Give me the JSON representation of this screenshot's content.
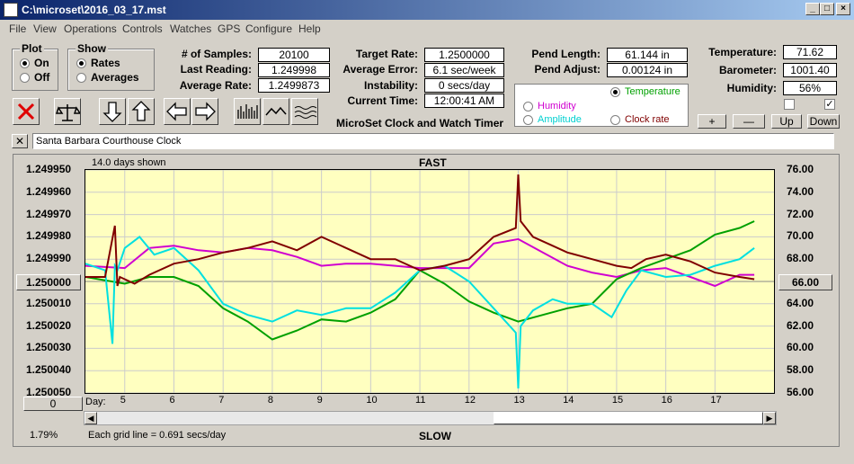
{
  "window": {
    "title": "C:\\microset\\2016_03_17.mst"
  },
  "menu": [
    "File",
    "View",
    "Operations",
    "Controls",
    "Watches",
    "GPS",
    "Configure",
    "Help"
  ],
  "plot_group": {
    "title": "Plot",
    "options": [
      "On",
      "Off"
    ],
    "selected": "On"
  },
  "show_group": {
    "title": "Show",
    "options": [
      "Rates",
      "Averages"
    ],
    "selected": "Rates"
  },
  "stats": {
    "samples_label": "# of Samples:",
    "samples": "20100",
    "last_label": "Last Reading:",
    "last": "1.249998",
    "avg_label": "Average Rate:",
    "avg": "1.2499873",
    "target_label": "Target Rate:",
    "target": "1.2500000",
    "err_label": "Average Error:",
    "err": "6.1 sec/week",
    "inst_label": "Instability:",
    "inst": "0 secs/day",
    "time_label": "Current Time:",
    "time": "12:00:41 AM",
    "pend_len_label": "Pend Length:",
    "pend_len": "61.144 in",
    "pend_adj_label": "Pend Adjust:",
    "pend_adj": "0.00124 in",
    "temp_label": "Temperature:",
    "temp": "71.62",
    "baro_label": "Barometer:",
    "baro": "1001.40",
    "hum_label": "Humidity:",
    "hum": "56%"
  },
  "app_caption": "MicroSet Clock and Watch Timer",
  "series_group": {
    "temperature": "Temperature",
    "humidity": "Humidity",
    "amplitude": "Amplitude",
    "clock_rate": "Clock rate",
    "selected": "Temperature",
    "colors": {
      "temperature": "#00a000",
      "humidity": "#d000d0",
      "amplitude": "#00e0e0",
      "clock_rate": "#800000"
    }
  },
  "small_buttons": {
    "plus": "+",
    "minus": "—",
    "up": "Up",
    "down": "Down"
  },
  "checkboxes": {
    "left": false,
    "right": true
  },
  "clock_name": "Santa Barbara Courthouse Clock",
  "close_button": "✕",
  "chart": {
    "days_shown": "14.0 days shown",
    "top_label": "FAST",
    "bottom_label": "SLOW",
    "center_left": "1.250000",
    "center_right": "66.00",
    "day_label": "Day:",
    "zero_button": "0",
    "percent": "1.79%",
    "grid_note": "Each grid line = 0.691 secs/day"
  },
  "chart_data": {
    "type": "line",
    "left_axis": {
      "ticks": [
        "1.249950",
        "1.249960",
        "1.249970",
        "1.249980",
        "1.249990",
        "1.250000",
        "1.250010",
        "1.250020",
        "1.250030",
        "1.250040",
        "1.250050"
      ],
      "ylim": [
        1.25005,
        1.24995
      ]
    },
    "right_axis": {
      "ticks": [
        "76.00",
        "74.00",
        "72.00",
        "70.00",
        "68.00",
        "66.00",
        "64.00",
        "62.00",
        "60.00",
        "58.00",
        "56.00"
      ],
      "ylim": [
        56,
        76
      ]
    },
    "x_ticks": [
      "5",
      "6",
      "7",
      "8",
      "9",
      "10",
      "11",
      "12",
      "13",
      "14",
      "15",
      "16",
      "17"
    ],
    "x_range": [
      4.2,
      18.2
    ],
    "series": [
      {
        "name": "Humidity",
        "color": "#d000d0",
        "x": [
          4.2,
          5,
          5.5,
          6,
          6.5,
          7,
          7.5,
          8,
          8.5,
          9,
          9.5,
          10,
          10.5,
          11,
          11.5,
          12,
          12.5,
          13,
          13.5,
          14,
          14.5,
          15,
          15.5,
          16,
          16.5,
          17,
          17.5,
          17.8
        ],
        "y": [
          1.249993,
          1.249994,
          1.249985,
          1.249984,
          1.249986,
          1.249987,
          1.249985,
          1.249986,
          1.249989,
          1.249993,
          1.249992,
          1.249992,
          1.249993,
          1.249994,
          1.249994,
          1.249994,
          1.249983,
          1.249981,
          1.249987,
          1.249993,
          1.249996,
          1.249998,
          1.249995,
          1.249994,
          1.249998,
          1.250002,
          1.249997,
          1.249997
        ]
      },
      {
        "name": "Temperature",
        "color": "#00a000",
        "x": [
          4.2,
          5,
          5.5,
          6,
          6.5,
          7,
          7.5,
          8,
          8.5,
          9,
          9.5,
          10,
          10.5,
          11,
          11.5,
          12,
          12.5,
          13,
          13.5,
          14,
          14.5,
          15,
          15.5,
          16,
          16.5,
          17,
          17.5,
          17.8
        ],
        "y": [
          1.249998,
          1.250001,
          1.249998,
          1.249998,
          1.250002,
          1.250012,
          1.250018,
          1.250026,
          1.250022,
          1.250017,
          1.250018,
          1.250014,
          1.250008,
          1.249995,
          1.250001,
          1.250009,
          1.250014,
          1.250018,
          1.250015,
          1.250012,
          1.25001,
          1.249999,
          1.249994,
          1.24999,
          1.249986,
          1.249979,
          1.249976,
          1.249973
        ]
      },
      {
        "name": "Amplitude",
        "color": "#00e0e0",
        "x": [
          4.2,
          4.6,
          4.75,
          4.8,
          4.85,
          5,
          5.3,
          5.6,
          6,
          6.5,
          7,
          7.5,
          8,
          8.5,
          9,
          9.5,
          10,
          10.5,
          11,
          11.5,
          12,
          12.5,
          12.95,
          13.0,
          13.05,
          13.3,
          13.7,
          14,
          14.5,
          14.9,
          15.2,
          15.5,
          16,
          16.5,
          17,
          17.5,
          17.8
        ],
        "y": [
          1.249992,
          1.249995,
          1.250028,
          1.249993,
          1.249995,
          1.249985,
          1.24998,
          1.249988,
          1.249985,
          1.249995,
          1.25001,
          1.250015,
          1.250018,
          1.250013,
          1.250015,
          1.250012,
          1.250012,
          1.250005,
          1.249995,
          1.249993,
          1.25,
          1.250012,
          1.250023,
          1.250048,
          1.25002,
          1.250013,
          1.250008,
          1.25001,
          1.25001,
          1.250016,
          1.250004,
          1.249995,
          1.249998,
          1.249997,
          1.249993,
          1.24999,
          1.249985
        ]
      },
      {
        "name": "Clock rate",
        "color": "#800000",
        "x": [
          4.2,
          4.6,
          4.8,
          4.85,
          4.9,
          5.2,
          5.5,
          6,
          6.5,
          7,
          7.5,
          8,
          8.5,
          9,
          9.5,
          10,
          10.5,
          11,
          11.5,
          12,
          12.5,
          12.95,
          13.0,
          13.05,
          13.3,
          13.7,
          14,
          14.5,
          15,
          15.3,
          15.6,
          16,
          16.5,
          17,
          17.5,
          17.8
        ],
        "y": [
          1.249998,
          1.249998,
          1.249975,
          1.250002,
          1.249998,
          1.250001,
          1.249997,
          1.249992,
          1.24999,
          1.249987,
          1.249985,
          1.249982,
          1.249986,
          1.24998,
          1.249985,
          1.24999,
          1.24999,
          1.249995,
          1.249993,
          1.24999,
          1.24998,
          1.249976,
          1.249952,
          1.249973,
          1.24998,
          1.249984,
          1.249987,
          1.24999,
          1.249993,
          1.249994,
          1.24999,
          1.249988,
          1.249991,
          1.249996,
          1.249998,
          1.249999
        ]
      }
    ]
  }
}
